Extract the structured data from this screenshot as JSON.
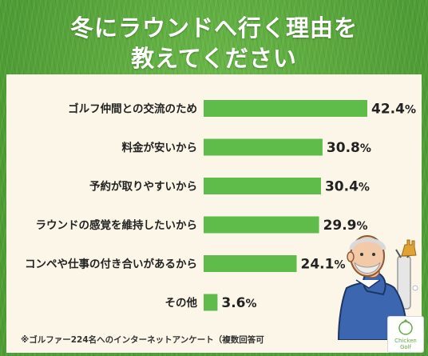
{
  "title": {
    "line1": "冬にラウンドへ行く理由を",
    "line2": "教えてください"
  },
  "footnote": "※ゴルファー224名へのインターネットアンケート（複数回答可",
  "logo": {
    "text": "Chicken Golf"
  },
  "colors": {
    "bar": "#5fbc4b",
    "panel": "#fbf6e7",
    "grass": "#57a93a",
    "title_text": "#ffffff"
  },
  "chart_data": {
    "type": "bar",
    "orientation": "horizontal",
    "title": "冬にラウンドへ行く理由を教えてください",
    "unit": "%",
    "categories": [
      "ゴルフ仲間との交流のため",
      "料金が安いから",
      "予約が取りやすいから",
      "ラウンドの感覚を維持したいから",
      "コンペや仕事の付き合いがあるから",
      "その他"
    ],
    "values": [
      42.4,
      30.8,
      30.4,
      29.9,
      24.1,
      3.6
    ],
    "labels": [
      "42.4",
      "30.8",
      "30.4",
      "29.9",
      "24.1",
      "3.6"
    ],
    "xlim": [
      0,
      42.4
    ],
    "grid": false,
    "legend": "none"
  }
}
